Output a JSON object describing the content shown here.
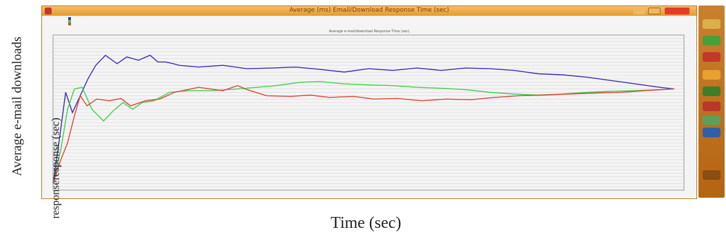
{
  "outer_ylabel": "Average e-mail downloads",
  "inner_ylabel": "responseresponse (sec)",
  "xlabel": "Time (sec)",
  "window": {
    "title": "Average (ms) Email/Download Response Time (sec)"
  },
  "plot_title": "Average e-mail/download Response Time (sec)",
  "legend": [
    {
      "color": "#3a2fb8"
    },
    {
      "color": "#3fcf4a"
    },
    {
      "color": "#d9463a"
    }
  ],
  "sidebar_icons": [
    "folder-icon",
    "graph-icon",
    "chart-icon",
    "tool-icon",
    "arrow-icon",
    "checkbox-icon",
    "notes-icon",
    "grid-icon",
    "play-icon"
  ],
  "colors": {
    "blue": "#3a2fb8",
    "green": "#3fcf4a",
    "red": "#d9463a",
    "grid": "#d8d8d8",
    "accent": "#e69a2a"
  },
  "chart_data": {
    "type": "line",
    "xlabel": "Time (sec)",
    "ylabel": "Average e-mail downloads responseresponse (sec)",
    "xlim": [
      0,
      650
    ],
    "ylim": [
      0,
      4.6
    ],
    "grid": true,
    "legend_position": "top-left",
    "series": [
      {
        "color": "#3a2fb8",
        "x": [
          0,
          6,
          13,
          20,
          28,
          36,
          44,
          54,
          66,
          76,
          88,
          100,
          108,
          116,
          124,
          130,
          150,
          175,
          200,
          225,
          250,
          275,
          300,
          325,
          350,
          375,
          400,
          425,
          450,
          475,
          500,
          525,
          550,
          575,
          600,
          625,
          640
        ],
        "y": [
          0.2,
          1.4,
          2.9,
          2.3,
          2.8,
          3.3,
          3.7,
          4.0,
          3.75,
          3.95,
          3.85,
          4.0,
          3.8,
          3.8,
          3.75,
          3.7,
          3.65,
          3.7,
          3.6,
          3.62,
          3.65,
          3.58,
          3.5,
          3.6,
          3.55,
          3.62,
          3.55,
          3.62,
          3.6,
          3.55,
          3.45,
          3.42,
          3.35,
          3.25,
          3.15,
          3.05,
          3.0
        ]
      },
      {
        "color": "#3fcf4a",
        "x": [
          0,
          8,
          15,
          22,
          30,
          40,
          52,
          62,
          72,
          82,
          92,
          104,
          120,
          140,
          165,
          190,
          210,
          230,
          255,
          275,
          300,
          325,
          350,
          375,
          400,
          425,
          450,
          475,
          500,
          525,
          550,
          575,
          600,
          625,
          640
        ],
        "y": [
          0.2,
          1.2,
          2.4,
          3.0,
          3.05,
          2.4,
          2.05,
          2.35,
          2.6,
          2.4,
          2.6,
          2.65,
          2.9,
          2.95,
          2.95,
          3.0,
          3.05,
          3.1,
          3.2,
          3.22,
          3.15,
          3.12,
          3.1,
          3.05,
          3.02,
          2.98,
          2.9,
          2.85,
          2.82,
          2.85,
          2.9,
          2.93,
          2.95,
          2.98,
          3.0
        ]
      },
      {
        "color": "#d9463a",
        "x": [
          0,
          8,
          15,
          22,
          28,
          35,
          45,
          58,
          70,
          80,
          95,
          110,
          125,
          150,
          175,
          190,
          200,
          220,
          245,
          265,
          285,
          310,
          330,
          355,
          380,
          405,
          430,
          455,
          480,
          505,
          530,
          560,
          585,
          610,
          640
        ],
        "y": [
          0.2,
          0.9,
          1.4,
          2.2,
          2.8,
          2.5,
          2.7,
          2.65,
          2.72,
          2.5,
          2.65,
          2.7,
          2.9,
          3.05,
          2.95,
          3.1,
          2.98,
          2.8,
          2.78,
          2.82,
          2.75,
          2.78,
          2.7,
          2.72,
          2.65,
          2.7,
          2.68,
          2.75,
          2.8,
          2.82,
          2.85,
          2.88,
          2.9,
          2.95,
          3.0
        ]
      }
    ]
  }
}
